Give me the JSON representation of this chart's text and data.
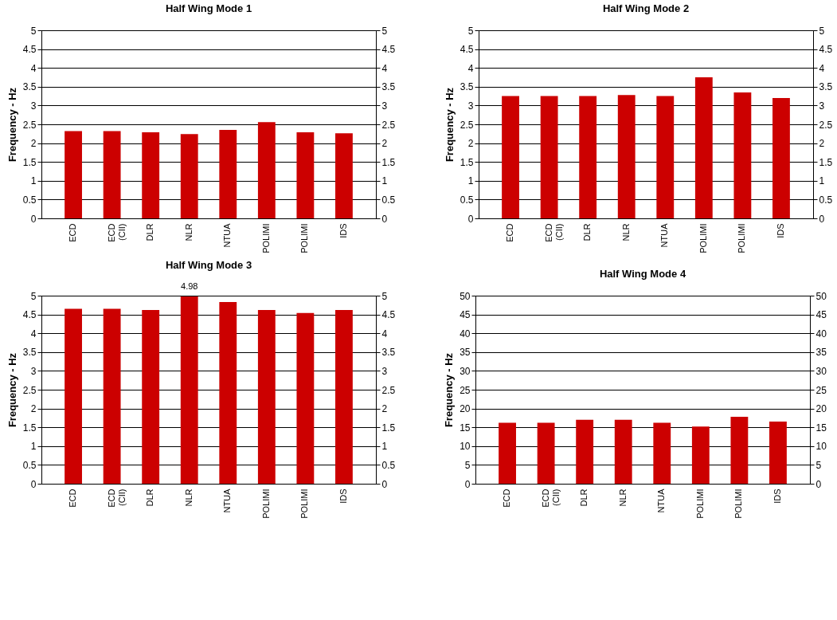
{
  "chart_data": [
    {
      "type": "bar",
      "title": "Half Wing Mode 1",
      "ylabel": "Frequency - Hz",
      "categories": [
        "ECD",
        "ECD (CII)",
        "DLR",
        "NLR",
        "NTUA",
        "POLIMI",
        "POLIMI",
        "IDS"
      ],
      "series": [
        {
          "color": "#cc0000",
          "values": [
            2.32,
            2.32,
            2.29,
            2.24,
            2.35,
            2.56,
            2.29,
            2.26
          ]
        }
      ],
      "ylim": [
        0,
        5
      ],
      "yticks": [
        0,
        0.5,
        1,
        1.5,
        2,
        2.5,
        3,
        3.5,
        4,
        4.5,
        5
      ],
      "y2lim": [
        0,
        5
      ],
      "y2ticks": [
        0,
        0.5,
        1,
        1.5,
        2,
        2.5,
        3,
        3.5,
        4,
        4.5,
        5
      ],
      "grid": "y"
    },
    {
      "type": "bar",
      "title": "Half Wing Mode 2",
      "ylabel": "Frequency - Hz",
      "categories": [
        "ECD",
        "ECD (CII)",
        "DLR",
        "NLR",
        "NTUA",
        "POLIMI",
        "POLIMI",
        "IDS"
      ],
      "series": [
        {
          "color": "#cc0000",
          "values": [
            3.25,
            3.25,
            3.25,
            3.28,
            3.25,
            3.75,
            3.35,
            3.2
          ]
        }
      ],
      "ylim": [
        0,
        5
      ],
      "yticks": [
        0,
        0.5,
        1,
        1.5,
        2,
        2.5,
        3,
        3.5,
        4,
        4.5,
        5
      ],
      "y2lim": [
        0,
        5
      ],
      "y2ticks": [
        0,
        0.5,
        1,
        1.5,
        2,
        2.5,
        3,
        3.5,
        4,
        4.5,
        5
      ],
      "grid": "y"
    },
    {
      "type": "bar",
      "title": "Half Wing Mode 3",
      "ylabel": "Frequency - Hz",
      "categories": [
        "ECD",
        "ECD (CII)",
        "DLR",
        "NLR",
        "NTUA",
        "POLIMI",
        "POLIMI",
        "IDS"
      ],
      "series": [
        {
          "color": "#cc0000",
          "values": [
            4.65,
            4.65,
            4.62,
            4.98,
            4.83,
            4.62,
            4.54,
            4.62
          ]
        }
      ],
      "ylim": [
        0,
        5
      ],
      "yticks": [
        0,
        0.5,
        1,
        1.5,
        2,
        2.5,
        3,
        3.5,
        4,
        4.5,
        5
      ],
      "y2lim": [
        0,
        5
      ],
      "y2ticks": [
        0,
        0.5,
        1,
        1.5,
        2,
        2.5,
        3,
        3.5,
        4,
        4.5,
        5
      ],
      "grid": "y",
      "annotations": [
        {
          "text": "4.98",
          "x": "NLR",
          "y": 4.98
        }
      ]
    },
    {
      "type": "bar",
      "title": "Half Wing Mode 4",
      "ylabel": "Frequency - Hz",
      "categories": [
        "ECD",
        "ECD (CII)",
        "DLR",
        "NLR",
        "NTUA",
        "POLIMI",
        "POLIMI",
        "IDS"
      ],
      "series": [
        {
          "color": "#cc0000",
          "values": [
            16.2,
            16.2,
            17,
            17,
            16.2,
            15.2,
            17.8,
            16.5
          ]
        }
      ],
      "ylim": [
        0,
        50
      ],
      "yticks": [
        0,
        5,
        10,
        15,
        20,
        25,
        30,
        35,
        40,
        45,
        50
      ],
      "y2lim": [
        0,
        50
      ],
      "y2ticks": [
        0,
        5,
        10,
        15,
        20,
        25,
        30,
        35,
        40,
        45,
        50
      ],
      "grid": "y"
    }
  ]
}
